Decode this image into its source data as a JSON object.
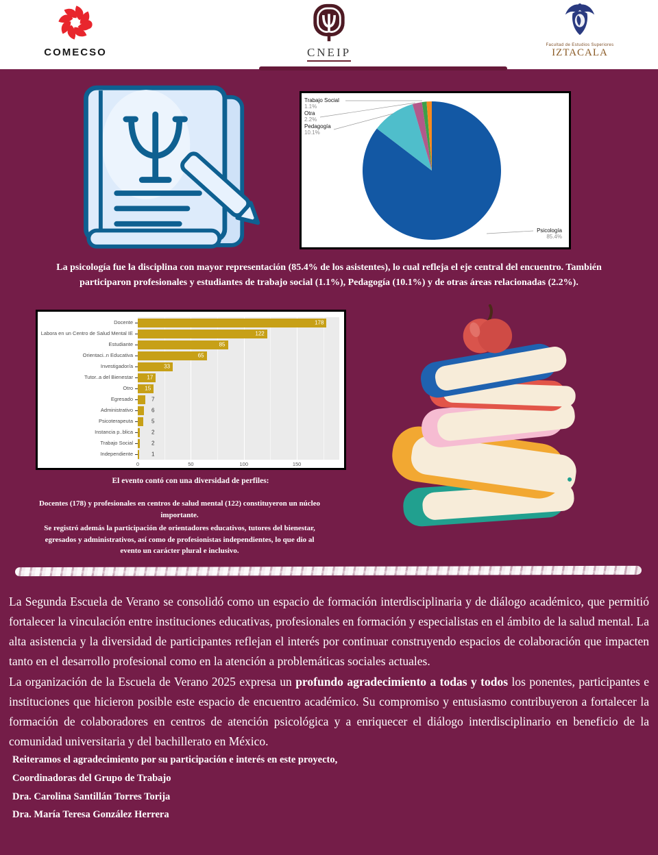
{
  "header": {
    "comecso_label": "COMECSO",
    "cneip_label": "CNEIP",
    "iztacala_line1": "Facultad de Estudios Superiores",
    "iztacala_label": "IZTACALA"
  },
  "colors": {
    "background": "#741d48",
    "bar_gold": "#c7a017",
    "pie_blue": "#1358a4",
    "pie_teal": "#4fbecb",
    "pie_magenta": "#b2598b",
    "pie_green": "#3ca04a",
    "pie_orange": "#f68a1f"
  },
  "chart_data": [
    {
      "type": "pie",
      "start_angle_deg": 0,
      "direction": "clockwise",
      "slices": [
        {
          "label": "Psicología",
          "pct": 85.4,
          "pct_label": "85.4%",
          "color": "#1358a4"
        },
        {
          "label": "Pedagogía",
          "pct": 10.1,
          "pct_label": "10.1%",
          "color": "#4fbecb"
        },
        {
          "label": "Otra",
          "pct": 2.2,
          "pct_label": "2.2%",
          "color": "#b2598b"
        },
        {
          "label": "Trabajo Social",
          "pct": 1.1,
          "pct_label": "1.1%",
          "color": "#3ca04a"
        },
        {
          "label": "",
          "pct": 1.2,
          "pct_label": "",
          "color": "#f68a1f"
        }
      ]
    },
    {
      "type": "bar",
      "orientation": "horizontal",
      "categories": [
        "Docente",
        "Labora en un Centro de Salud Mental IE",
        "Estudiante",
        "Orientaci..n Educativa",
        "Investigador/a",
        "Tutor..a del Bienestar",
        "Otro",
        "Egresado",
        "Administrativo",
        "Psicoterapeuta",
        "Instancia p..blica",
        "Trabajo Social",
        "Independiente"
      ],
      "values": [
        178,
        122,
        85,
        65,
        33,
        17,
        15,
        7,
        6,
        5,
        2,
        2,
        1
      ],
      "xlim": [
        0,
        190
      ],
      "x_ticks": [
        0,
        50,
        100,
        150
      ],
      "minor_ticks": [
        25,
        75,
        125,
        175
      ],
      "bar_color": "#c7a017",
      "panel_bg": "#ebebeb",
      "grid": "on",
      "value_label_inside_threshold": 15
    }
  ],
  "captions": {
    "pie_caption": "La psicología fue la disciplina con mayor representación (85.4% de los asistentes), lo cual refleja el eje central del encuentro. También participaron profesionales y estudiantes de trabajo social (1.1%), Pedagogía (10.1%) y de otras áreas relacionadas (2.2%).",
    "profiles_heading": "El evento contó con una diversidad de perfiles:",
    "profiles_p1": "Docentes (178) y profesionales en centros de salud mental (122) constituyeron un núcleo importante.",
    "profiles_p2": "Se registró además la participación de orientadores educativos, tutores del bienestar, egresados y administrativos, así como de profesionistas independientes, lo que dio al evento un carácter plural e inclusivo."
  },
  "paragraphs": {
    "p1": "La Segunda Escuela de Verano se consolidó como un espacio de formación interdisciplinaria y de diálogo académico, que permitió fortalecer la vinculación entre instituciones educativas, profesionales en formación y especialistas en el ámbito de la salud mental. La alta asistencia y la diversidad de participantes reflejan el interés por continuar construyendo espacios de colaboración que impacten tanto en el desarrollo profesional como en la atención a problemáticas sociales actuales.",
    "p2_before": "La organización de la Escuela de Verano 2025 expresa un ",
    "p2_bold": "profundo agradecimiento a todas y todos",
    "p2_after": " los ponentes, participantes e instituciones que hicieron posible este espacio de encuentro académico. Su compromiso y entusiasmo contribuyeron a fortalecer la formación de colaboradores en centros de atención psicológica y a enriquecer el diálogo interdisciplinario en beneficio de la comunidad universitaria y del bachillerato en México."
  },
  "closing": {
    "line1": "Reiteramos el agradecimiento por su participación e interés en este proyecto,",
    "line2": "Coordinadoras del Grupo de Trabajo",
    "line3": "Dra. Carolina Santillán Torres Torija",
    "line4": "Dra. María Teresa González Herrera"
  }
}
